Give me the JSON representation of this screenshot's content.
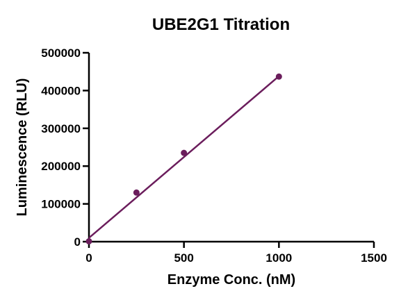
{
  "chart_data": {
    "type": "scatter",
    "title": "UBE2G1 Titration",
    "xlabel": "Enzyme Conc. (nM)",
    "ylabel": "Luminescence (RLU)",
    "xlim": [
      0,
      1500
    ],
    "ylim": [
      0,
      500000
    ],
    "xticks": [
      0,
      500,
      1000,
      1500
    ],
    "yticks": [
      0,
      100000,
      200000,
      300000,
      400000,
      500000
    ],
    "grid": false,
    "series": [
      {
        "x": [
          0,
          250,
          500,
          1000
        ],
        "y": [
          1000,
          130000,
          235000,
          437000
        ]
      }
    ],
    "fit_line": {
      "x": [
        0,
        1000
      ],
      "y": [
        10000,
        438000
      ]
    },
    "color": "#6b1d5c"
  }
}
